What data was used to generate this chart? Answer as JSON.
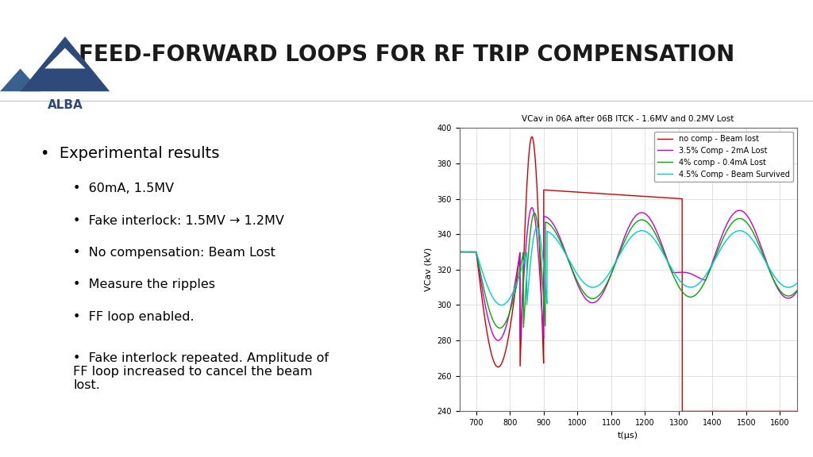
{
  "title": "FEED-FORWARD LOOPS FOR RF TRIP COMPENSATION",
  "slide_bg": "#ffffff",
  "title_color": "#1a1a1a",
  "title_fontsize": 20,
  "bullet_main": "Experimental results",
  "bullets_sub": [
    "60mA, 1.5MV",
    "Fake interlock: 1.5MV → 1.2MV",
    "No compensation: Beam Lost",
    "Measure the ripples",
    "FF loop enabled.",
    "Fake interlock repeated. Amplitude of\nFF loop increased to cancel the beam\nlost."
  ],
  "plot_title": "VCav in 06A after 06B ITCK - 1.6MV and 0.2MV Lost",
  "xlabel": "t(μs)",
  "ylabel": "VCav (kV)",
  "xlim": [
    650,
    1650
  ],
  "ylim": [
    240,
    400
  ],
  "xticks": [
    700,
    800,
    900,
    1000,
    1100,
    1200,
    1300,
    1400,
    1500,
    1600
  ],
  "yticks": [
    240,
    260,
    280,
    300,
    320,
    340,
    360,
    380,
    400
  ],
  "legend_labels": [
    "no comp - Beam lost",
    "3.5% Comp - 2mA Lost",
    "4% comp - 0.4mA Lost",
    "4.5% Comp - Beam Survived"
  ],
  "line_colors": [
    "#cc0000",
    "#cc00cc",
    "#00aa00",
    "#00cccc"
  ],
  "grid_color": "#cccccc",
  "alba_logo_color": "#2d4a7a",
  "text_color": "#000000"
}
